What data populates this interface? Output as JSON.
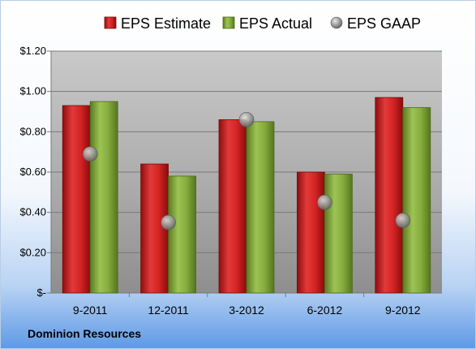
{
  "footer_label": "Dominion Resources",
  "chart_data": {
    "type": "bar",
    "categories": [
      "9-2011",
      "12-2011",
      "3-2012",
      "6-2012",
      "9-2012"
    ],
    "series": [
      {
        "name": "EPS Estimate",
        "kind": "bar",
        "color": "#cc1f1f",
        "values": [
          0.93,
          0.64,
          0.86,
          0.6,
          0.97
        ]
      },
      {
        "name": "EPS Actual",
        "kind": "bar",
        "color": "#7fa535",
        "values": [
          0.95,
          0.58,
          0.85,
          0.59,
          0.92
        ]
      },
      {
        "name": "EPS GAAP",
        "kind": "point",
        "color": "#9a9a9a",
        "values": [
          0.69,
          0.35,
          0.86,
          0.45,
          0.36
        ]
      }
    ],
    "yticks": [
      "$-",
      "$0.20",
      "$0.40",
      "$0.60",
      "$0.80",
      "$1.00",
      "$1.20"
    ],
    "ylim": [
      0,
      1.2
    ],
    "ystep": 0.2,
    "grid": true,
    "legend_position": "top"
  }
}
